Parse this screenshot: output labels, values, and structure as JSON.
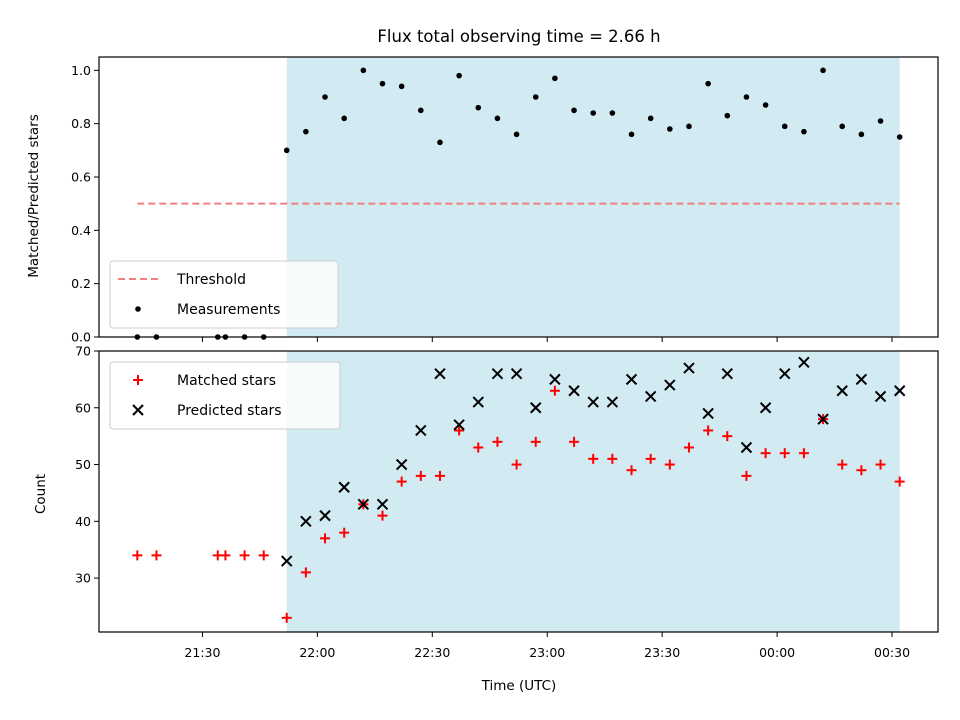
{
  "chart_data": [
    {
      "type": "scatter",
      "title": "Flux total observing time = 2.66 h",
      "ylabel": "Matched/Predicted stars",
      "xlabel": "",
      "ylim": [
        0,
        1.05
      ],
      "yticks": [
        "0.0",
        "0.2",
        "0.4",
        "0.6",
        "0.8",
        "1.0"
      ],
      "ytick_values": [
        0,
        0.2,
        0.4,
        0.6,
        0.8,
        1.0
      ],
      "shaded_span": [
        "21:52",
        "00:32"
      ],
      "shaded_color": "#add8e6",
      "threshold": {
        "name": "Threshold",
        "value": 0.5,
        "x_range": [
          "21:13",
          "00:32"
        ],
        "color": "#f08080"
      },
      "series": [
        {
          "name": "Measurements",
          "color": "#000000",
          "marker": "dot",
          "x": [
            "21:13",
            "21:18",
            "21:34",
            "21:36",
            "21:41",
            "21:46",
            "21:52",
            "21:57",
            "22:02",
            "22:07",
            "22:12",
            "22:17",
            "22:22",
            "22:27",
            "22:32",
            "22:37",
            "22:42",
            "22:47",
            "22:52",
            "22:57",
            "23:02",
            "23:07",
            "23:12",
            "23:17",
            "23:22",
            "23:27",
            "23:32",
            "23:37",
            "23:42",
            "23:47",
            "23:52",
            "23:57",
            "00:02",
            "00:07",
            "00:12",
            "00:17",
            "00:22",
            "00:27",
            "00:32"
          ],
          "values": [
            0.0,
            0.0,
            0.0,
            0.0,
            0.0,
            0.0,
            0.7,
            0.77,
            0.9,
            0.82,
            1.0,
            0.95,
            0.94,
            0.85,
            0.73,
            0.98,
            0.86,
            0.82,
            0.76,
            0.9,
            0.97,
            0.85,
            0.84,
            0.84,
            0.76,
            0.82,
            0.78,
            0.79,
            0.95,
            0.83,
            0.9,
            0.87,
            0.79,
            0.77,
            1.0,
            0.79,
            0.76,
            0.81,
            0.75
          ]
        }
      ],
      "legend": {
        "placement": "lower-left",
        "entries": [
          "Threshold",
          "Measurements"
        ]
      },
      "grid": false
    },
    {
      "type": "scatter",
      "title": "",
      "ylabel": "Count",
      "xlabel": "Time (UTC)",
      "ylim": [
        20.5,
        70
      ],
      "yticks": [
        "30",
        "40",
        "50",
        "60",
        "70"
      ],
      "ytick_values": [
        30,
        40,
        50,
        60,
        70
      ],
      "xticks": [
        "21:30",
        "22:00",
        "22:30",
        "23:00",
        "23:30",
        "00:00",
        "00:30"
      ],
      "xlim": [
        "21:03",
        "00:42"
      ],
      "shaded_span": [
        "21:52",
        "00:32"
      ],
      "shaded_color": "#add8e6",
      "series": [
        {
          "name": "Matched stars",
          "color": "#ff0000",
          "marker": "plus",
          "x": [
            "21:13",
            "21:18",
            "21:34",
            "21:36",
            "21:41",
            "21:46",
            "21:52",
            "21:57",
            "22:02",
            "22:07",
            "22:12",
            "22:17",
            "22:22",
            "22:27",
            "22:32",
            "22:37",
            "22:42",
            "22:47",
            "22:52",
            "22:57",
            "23:02",
            "23:07",
            "23:12",
            "23:17",
            "23:22",
            "23:27",
            "23:32",
            "23:37",
            "23:42",
            "23:47",
            "23:52",
            "23:57",
            "00:02",
            "00:07",
            "00:12",
            "00:17",
            "00:22",
            "00:27",
            "00:32"
          ],
          "values": [
            34,
            34,
            34,
            34,
            34,
            34,
            23,
            31,
            37,
            38,
            43,
            41,
            47,
            48,
            48,
            56,
            53,
            54,
            50,
            54,
            63,
            54,
            51,
            51,
            49,
            51,
            50,
            53,
            56,
            55,
            48,
            52,
            52,
            52,
            58,
            50,
            49,
            50,
            47
          ]
        },
        {
          "name": "Predicted stars",
          "color": "#000000",
          "marker": "x",
          "x": [
            "21:52",
            "21:57",
            "22:02",
            "22:07",
            "22:12",
            "22:17",
            "22:22",
            "22:27",
            "22:32",
            "22:37",
            "22:42",
            "22:47",
            "22:52",
            "22:57",
            "23:02",
            "23:07",
            "23:12",
            "23:17",
            "23:22",
            "23:27",
            "23:32",
            "23:37",
            "23:42",
            "23:47",
            "23:52",
            "23:57",
            "00:02",
            "00:07",
            "00:12",
            "00:17",
            "00:22",
            "00:27",
            "00:32"
          ],
          "values": [
            33,
            40,
            41,
            46,
            43,
            43,
            50,
            56,
            66,
            57,
            61,
            66,
            66,
            60,
            65,
            63,
            61,
            61,
            65,
            62,
            64,
            67,
            59,
            66,
            53,
            60,
            66,
            68,
            58,
            63,
            65,
            62,
            63
          ]
        }
      ],
      "legend": {
        "placement": "upper-left",
        "entries": [
          "Matched stars",
          "Predicted stars"
        ]
      },
      "grid": false
    }
  ]
}
